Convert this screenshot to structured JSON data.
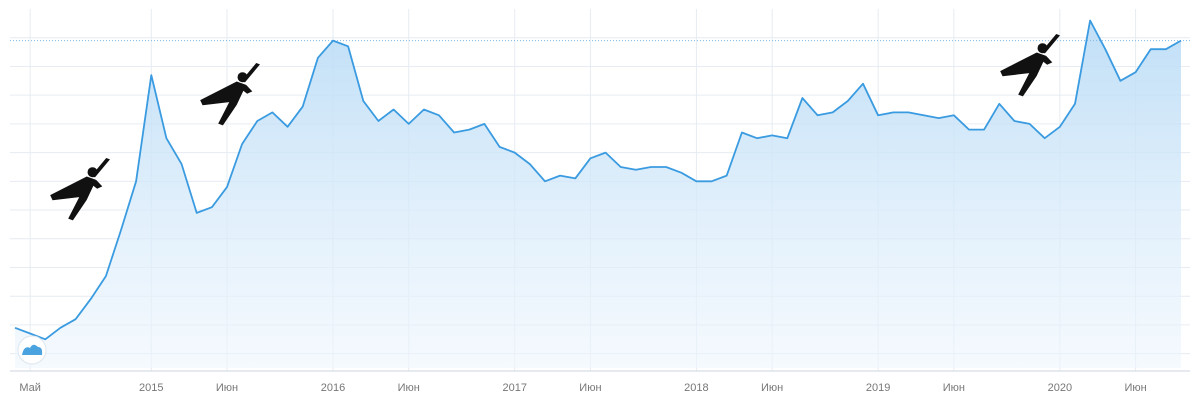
{
  "chart_data": {
    "type": "line",
    "color": "#3a9be0",
    "categories": [
      null,
      "Май",
      null,
      null,
      null,
      null,
      null,
      null,
      null,
      "2015",
      null,
      null,
      null,
      null,
      "Июн",
      null,
      null,
      null,
      null,
      null,
      null,
      "2016",
      null,
      null,
      null,
      null,
      "Июн",
      null,
      null,
      null,
      null,
      null,
      null,
      "2017",
      null,
      null,
      null,
      null,
      "Июн",
      null,
      null,
      null,
      null,
      null,
      null,
      "2018",
      null,
      null,
      null,
      null,
      "Июн",
      null,
      null,
      null,
      null,
      null,
      null,
      "2019",
      null,
      null,
      null,
      null,
      "Июн",
      null,
      null,
      null,
      null,
      null,
      null,
      "2020",
      null,
      null,
      null,
      null,
      "Июн",
      null,
      null,
      null
    ],
    "values": [
      0.9,
      0.7,
      0.5,
      0.9,
      1.2,
      1.9,
      2.7,
      4.3,
      6.0,
      9.7,
      7.5,
      6.6,
      4.9,
      5.1,
      5.8,
      7.3,
      8.1,
      8.4,
      7.9,
      8.6,
      10.3,
      10.9,
      10.7,
      8.8,
      8.1,
      8.5,
      8.0,
      8.5,
      8.3,
      7.7,
      7.8,
      8.0,
      7.2,
      7.0,
      6.6,
      6.0,
      6.2,
      6.1,
      6.8,
      7.0,
      6.5,
      6.4,
      6.5,
      6.5,
      6.3,
      6.0,
      6.0,
      6.2,
      7.7,
      7.5,
      7.6,
      7.5,
      8.9,
      8.3,
      8.4,
      8.8,
      9.4,
      8.3,
      8.4,
      8.4,
      8.3,
      8.2,
      8.3,
      7.8,
      7.8,
      8.7,
      8.1,
      8.0,
      7.5,
      7.9,
      8.7,
      11.6,
      10.6,
      9.5,
      9.8,
      10.6,
      10.6,
      10.9
    ],
    "ylim": [
      -0.5,
      12
    ],
    "yticks": [
      0,
      1,
      2,
      3,
      4,
      5,
      6,
      7,
      8,
      9,
      10,
      11
    ],
    "grid": true
  }
}
